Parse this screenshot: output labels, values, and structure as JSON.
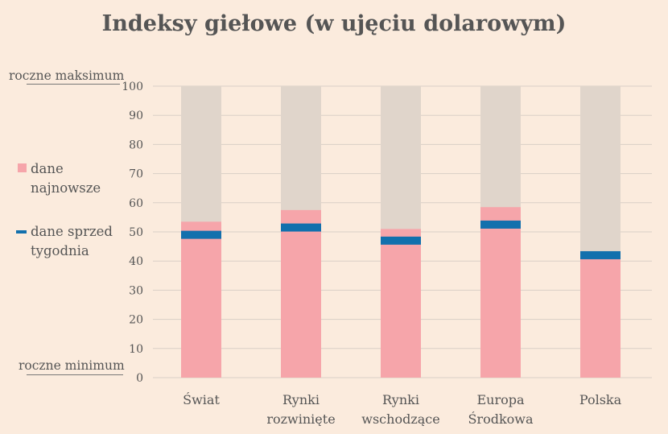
{
  "title": "Indeksy giełowe (w ujęciu dolarowym)",
  "legend": {
    "latest_label": "dane najnowsze",
    "latest_line1": "dane",
    "latest_line2": "najnowsze",
    "previous_label": "dane sprzed tygodnia",
    "previous_line1": "dane sprzed",
    "previous_line2": "tygodnia"
  },
  "axis_notes": {
    "max": "roczne maksimum",
    "min": "roczne minimum"
  },
  "colors": {
    "background": "#fbebdd",
    "range_bar": "#e0d5cb",
    "latest": "#f6a5aa",
    "previous": "#1270ad",
    "grid": "#d9cfc6"
  },
  "chart_data": {
    "type": "bar",
    "title": "Indeksy giełowe (w ujęciu dolarowym)",
    "categories": [
      [
        "Świat"
      ],
      [
        "Rynki",
        "rozwinięte"
      ],
      [
        "Rynki",
        "wschodzące"
      ],
      [
        "Europa",
        "Środkowa"
      ],
      [
        "Polska"
      ]
    ],
    "series": [
      {
        "name": "dane najnowsze",
        "values": [
          53.5,
          57.5,
          51,
          58.5,
          41
        ]
      },
      {
        "name": "dane sprzed tygodnia",
        "values": [
          49,
          51.5,
          47,
          52.5,
          42
        ]
      }
    ],
    "range": [
      0,
      100
    ],
    "ylim": [
      0,
      100
    ],
    "yticks": [
      0,
      10,
      20,
      30,
      40,
      50,
      60,
      70,
      80,
      90,
      100
    ],
    "grid": true
  }
}
